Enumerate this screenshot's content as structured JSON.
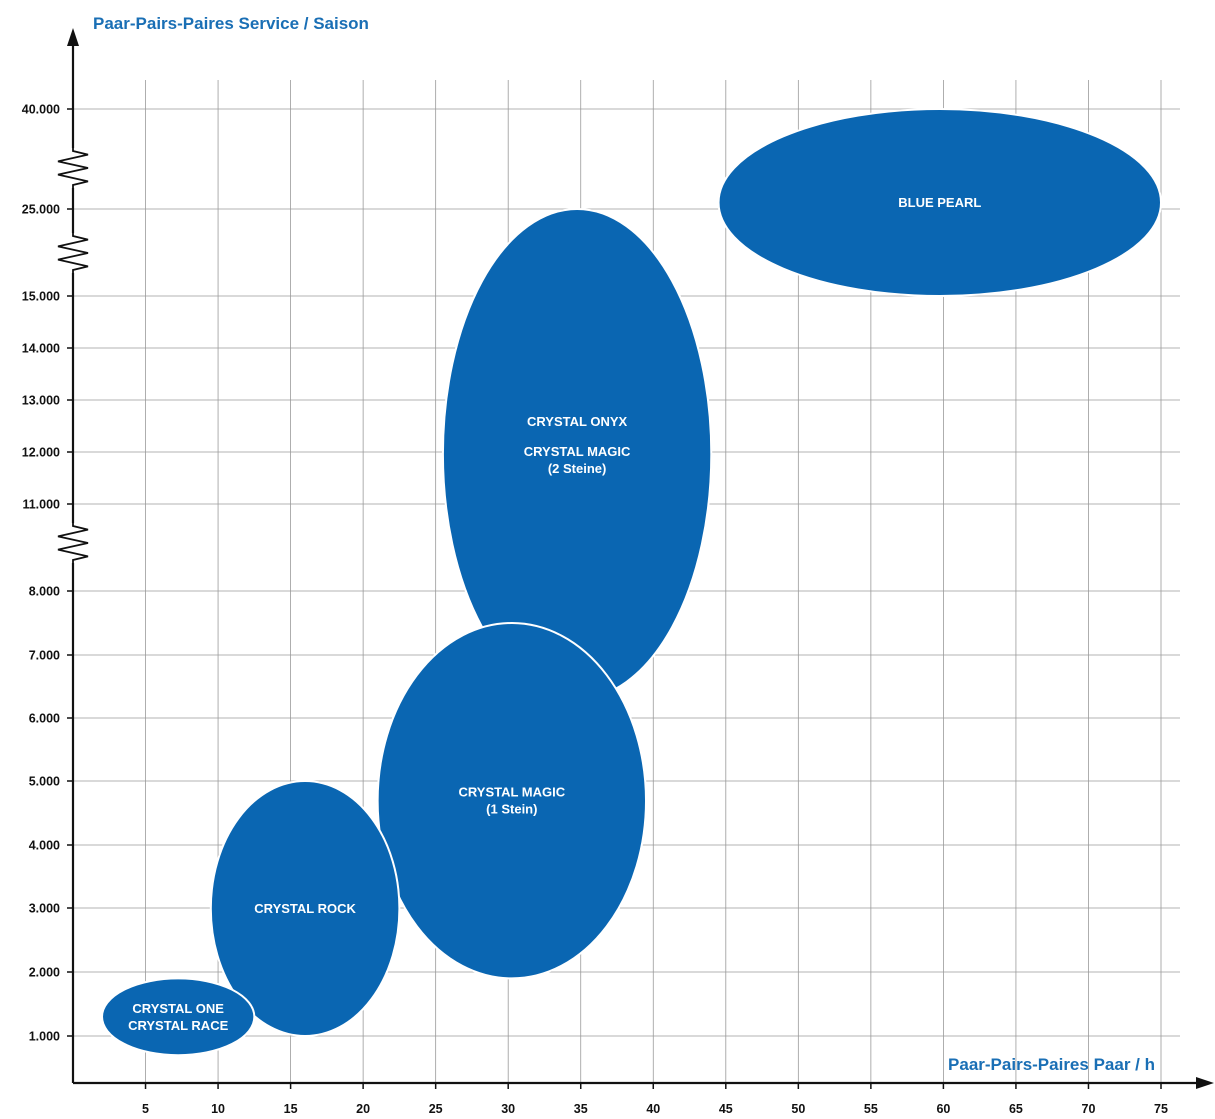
{
  "chart_data": {
    "type": "scatter",
    "title": "",
    "ylabel": "Paar-Pairs-Paires Service / Saison",
    "xlabel": "Paar-Pairs-Paires Paar / h",
    "x_ticks": [
      5,
      10,
      15,
      20,
      25,
      30,
      35,
      40,
      45,
      50,
      55,
      60,
      65,
      70,
      75
    ],
    "y_ticks": [
      "1.000",
      "2.000",
      "3.000",
      "4.000",
      "5.000",
      "6.000",
      "7.000",
      "8.000",
      "11.000",
      "12.000",
      "13.000",
      "14.000",
      "15.000",
      "25.000",
      "40.000"
    ],
    "y_scale": "broken (axis breaks between 8.000–11.000, 15.000–25.000 and 25.000–40.000)",
    "grid": true,
    "colors": {
      "blob": "#0a66b2",
      "title": "#1a6fb5"
    },
    "regions": [
      {
        "lines": [
          "CRYSTAL ONE",
          "CRYSTAL RACE"
        ],
        "x_range": [
          2,
          12.5
        ],
        "y_range": [
          "700",
          "1.900"
        ]
      },
      {
        "lines": [
          "CRYSTAL ROCK"
        ],
        "x_range": [
          9.5,
          22.5
        ],
        "y_range": [
          "1.000",
          "5.000"
        ]
      },
      {
        "lines": [
          "CRYSTAL MAGIC",
          "(1 Stein)"
        ],
        "x_range": [
          21,
          39.5
        ],
        "y_range": [
          "1.900",
          "7.500"
        ]
      },
      {
        "lines": [
          "CRYSTAL ONYX",
          "CRYSTAL MAGIC",
          "(2 Steine)"
        ],
        "x_range": [
          25.5,
          44
        ],
        "y_range": [
          "6.300",
          "25.000"
        ]
      },
      {
        "lines": [
          "BLUE PEARL"
        ],
        "x_range": [
          44.5,
          75
        ],
        "y_range": [
          "15.000",
          "40.000"
        ]
      }
    ]
  }
}
